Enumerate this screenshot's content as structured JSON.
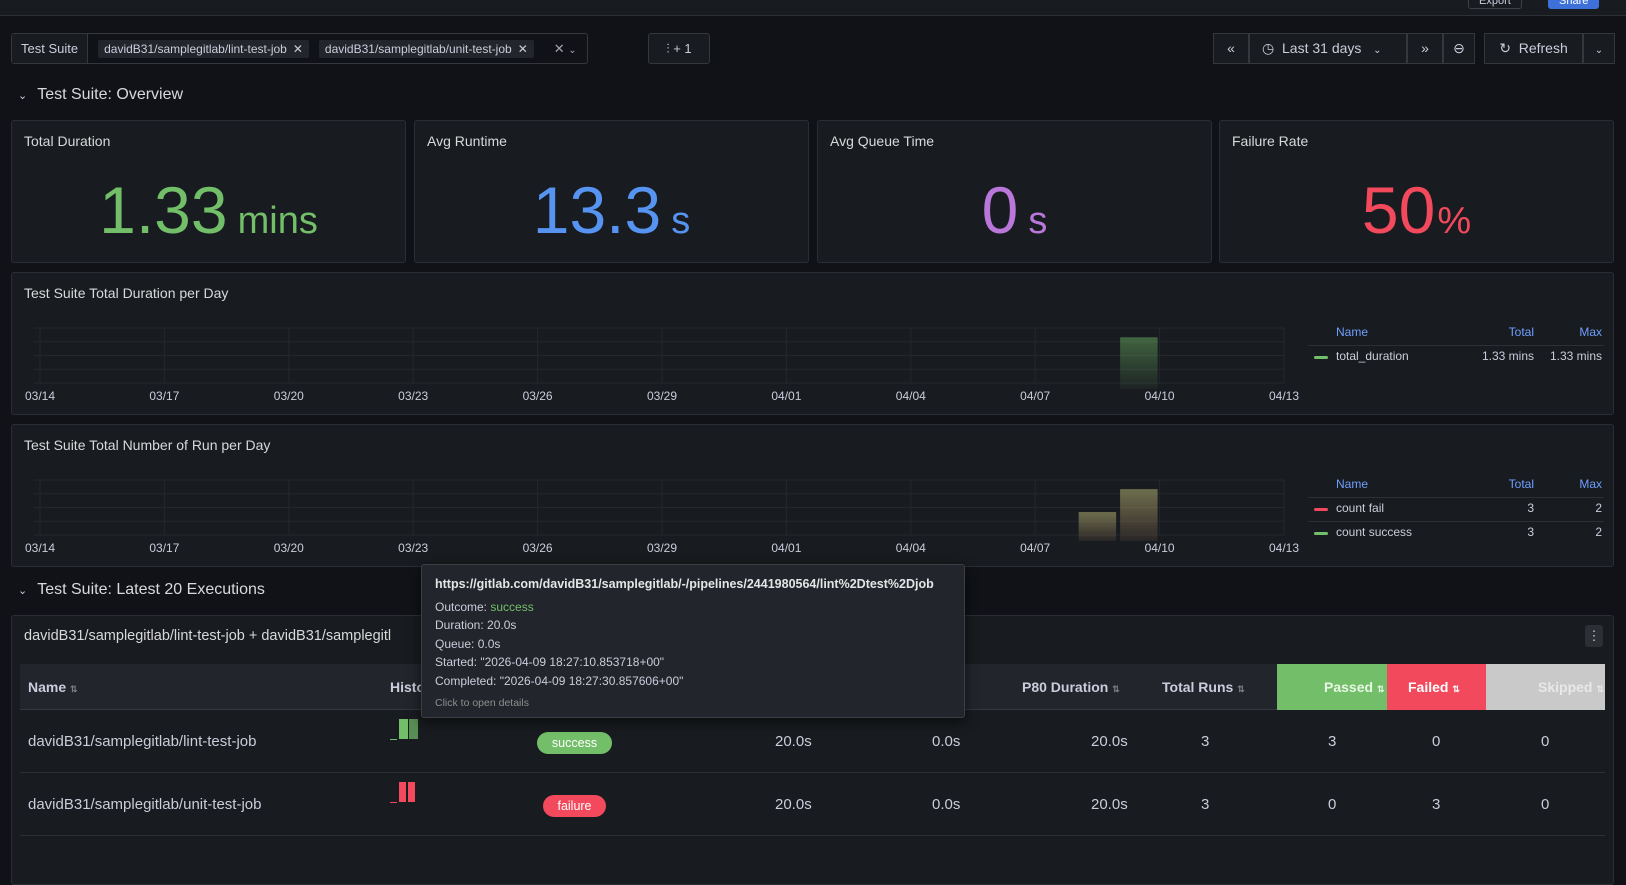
{
  "topbar": {
    "export_label": "Export",
    "share_label": "Share"
  },
  "variables": {
    "label": "Test Suite",
    "chips": [
      "davidB31/samplegitlab/lint-test-job",
      "davidB31/samplegitlab/unit-test-job"
    ],
    "adhoc_label": "+ 1"
  },
  "time": {
    "range_label": "Last 31 days",
    "refresh_label": "Refresh"
  },
  "rows": {
    "overview": "Test Suite: Overview",
    "latest": "Test Suite: Latest 20 Executions"
  },
  "stats": [
    {
      "title": "Total Duration",
      "value": "1.33",
      "unit": "mins",
      "color": "#73bf69"
    },
    {
      "title": "Avg Runtime",
      "value": "13.3",
      "unit": "s",
      "color": "#5794f2"
    },
    {
      "title": "Avg Queue Time",
      "value": "0",
      "unit": "s",
      "color": "#b877d9"
    },
    {
      "title": "Failure Rate",
      "value": "50",
      "unit": "%",
      "color": "#f2495c"
    }
  ],
  "charts": [
    {
      "title": "Test Suite Total Duration per Day",
      "legend_headers": [
        "Name",
        "Total",
        "Max"
      ],
      "legend_rows": [
        {
          "name": "total_duration",
          "total": "1.33 mins",
          "max": "1.33 mins",
          "color": "#73bf69"
        }
      ]
    },
    {
      "title": "Test Suite Total Number of Run per Day",
      "legend_headers": [
        "Name",
        "Total",
        "Max"
      ],
      "legend_rows": [
        {
          "name": "count fail",
          "total": "3",
          "max": "2",
          "color": "#f2495c"
        },
        {
          "name": "count success",
          "total": "3",
          "max": "2",
          "color": "#73bf69"
        }
      ]
    }
  ],
  "chart_data": [
    {
      "type": "bar",
      "title": "Test Suite Total Duration per Day",
      "x_ticks": [
        "03/14",
        "03/17",
        "03/20",
        "03/23",
        "03/26",
        "03/29",
        "04/01",
        "04/04",
        "04/07",
        "04/10",
        "04/13"
      ],
      "series": [
        {
          "name": "total_duration",
          "bars": [
            {
              "date": "04/09",
              "value": 1.33
            }
          ]
        }
      ],
      "ylim": [
        0,
        1.6
      ],
      "grid": true,
      "legend": "right"
    },
    {
      "type": "bar",
      "title": "Test Suite Total Number of Run per Day",
      "x_ticks": [
        "03/14",
        "03/17",
        "03/20",
        "03/23",
        "03/26",
        "03/29",
        "04/01",
        "04/04",
        "04/07",
        "04/10",
        "04/13"
      ],
      "series": [
        {
          "name": "count fail",
          "bars": [
            {
              "date": "04/08",
              "value": 1
            },
            {
              "date": "04/09",
              "value": 2
            }
          ]
        },
        {
          "name": "count success",
          "bars": [
            {
              "date": "04/08",
              "value": 1
            },
            {
              "date": "04/09",
              "value": 2
            }
          ]
        }
      ],
      "ylim": [
        0,
        2.4
      ],
      "grid": true,
      "legend": "right"
    }
  ],
  "tooltip": {
    "url": "https://gitlab.com/davidB31/samplegitlab/-/pipelines/2441980564/lint%2Dtest%2Djob",
    "outcome_label": "Outcome:",
    "outcome": "success",
    "duration_label": "Duration:",
    "duration": "20.0s",
    "queue_label": "Queue:",
    "queue": "0.0s",
    "started_label": "Started:",
    "started": "\"2026-04-09 18:27:10.853718+00\"",
    "completed_label": "Completed:",
    "completed": "\"2026-04-09 18:27:30.857606+00\"",
    "hint": "Click to open details"
  },
  "table": {
    "title": "davidB31/samplegitlab/lint-test-job + davidB31/samplegitl",
    "headers": {
      "name": "Name",
      "history": "Histo",
      "p80": "P80 Duration",
      "runs": "Total Runs",
      "passed": "Passed",
      "failed": "Failed",
      "skipped": "Skipped"
    },
    "rows": [
      {
        "name": "davidB31/samplegitlab/lint-test-job",
        "status": "success",
        "duration": "20.0s",
        "queue": "0.0s",
        "p80": "20.0s",
        "runs": "3",
        "passed": "3",
        "failed": "0",
        "skipped": "0"
      },
      {
        "name": "davidB31/samplegitlab/unit-test-job",
        "status": "failure",
        "duration": "20.0s",
        "queue": "0.0s",
        "p80": "20.0s",
        "runs": "3",
        "passed": "0",
        "failed": "3",
        "skipped": "0"
      }
    ]
  }
}
